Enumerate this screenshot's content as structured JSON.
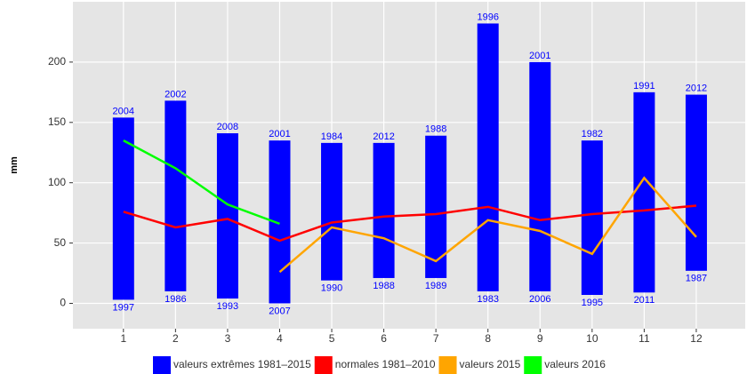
{
  "chart_data": {
    "type": "combo",
    "y_label": "mm",
    "x": [
      1,
      2,
      3,
      4,
      5,
      6,
      7,
      8,
      9,
      10,
      11,
      12
    ],
    "xlim": [
      0.03,
      12.94
    ],
    "xticks": [
      1,
      2,
      3,
      4,
      5,
      6,
      7,
      8,
      9,
      10,
      11,
      12
    ],
    "ylim": [
      -21,
      250
    ],
    "yticks": [
      0,
      50,
      100,
      150,
      200
    ],
    "grid": true,
    "legend": "bottom",
    "series": [
      {
        "name": "valeurs extrêmes 1981–2015",
        "kind": "range",
        "color": "#0000ff",
        "max": [
          154,
          168,
          141,
          135,
          133,
          133,
          139,
          232,
          200,
          135,
          175,
          173
        ],
        "min": [
          3,
          10,
          4,
          0,
          19,
          21,
          21,
          10,
          10,
          7,
          9,
          27
        ],
        "max_years": [
          "2004",
          "2002",
          "2008",
          "2001",
          "1984",
          "2012",
          "1988",
          "1996",
          "2001",
          "1982",
          "1991",
          "2012"
        ],
        "min_years": [
          "1997",
          "1986",
          "1993",
          "2007",
          "1990",
          "1988",
          "1989",
          "1983",
          "2006",
          "1995",
          "2011",
          "1987"
        ]
      },
      {
        "name": "normales 1981–2010",
        "kind": "line",
        "color": "#ff0000",
        "values": [
          76,
          63,
          70,
          52,
          67,
          72,
          74,
          80,
          69,
          74,
          77,
          81
        ]
      },
      {
        "name": "valeurs 2015",
        "kind": "line",
        "color": "#ffa500",
        "values": [
          null,
          null,
          null,
          26,
          63,
          54,
          35,
          69,
          60,
          41,
          104,
          55
        ]
      },
      {
        "name": "valeurs 2016",
        "kind": "line",
        "color": "#00ff00",
        "values": [
          135,
          112,
          82,
          66,
          null,
          null,
          null,
          null,
          null,
          null,
          null,
          null
        ]
      }
    ]
  }
}
